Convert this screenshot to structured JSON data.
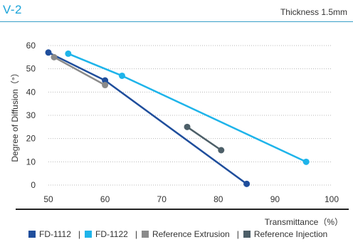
{
  "header": {
    "title": "V-2",
    "subtitle": "Thickness 1.5mm"
  },
  "chart_data": {
    "type": "line",
    "title": "V-2",
    "subtitle": "Thickness 1.5mm",
    "xlabel": "Transmittance（%）",
    "ylabel": "Degree of Diffusion（°）",
    "xlim": [
      50,
      100
    ],
    "ylim": [
      0,
      60
    ],
    "xticks": [
      "50",
      "60",
      "70",
      "80",
      "90",
      "100"
    ],
    "yticks": [
      "0",
      "10",
      "20",
      "30",
      "40",
      "50",
      "60"
    ],
    "grid": "horizontal-dotted",
    "legend_position": "bottom",
    "series": [
      {
        "name": "FD-1112",
        "color": "#1f4e9c",
        "x": [
          50,
          60,
          85
        ],
        "y": [
          57,
          45,
          0.5
        ]
      },
      {
        "name": "FD-1122",
        "color": "#1eb4ea",
        "x": [
          53.5,
          63,
          95.5
        ],
        "y": [
          56.5,
          47,
          10
        ]
      },
      {
        "name": "Reference Extrusion",
        "color": "#8a8a8a",
        "x": [
          51,
          60
        ],
        "y": [
          55,
          43
        ]
      },
      {
        "name": "Reference Injection",
        "color": "#4d5f68",
        "x": [
          74.5,
          80.5
        ],
        "y": [
          25,
          15
        ]
      }
    ]
  }
}
